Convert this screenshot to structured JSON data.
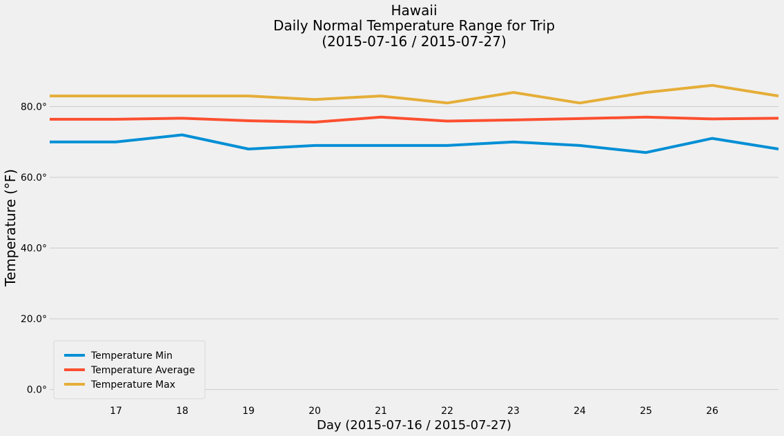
{
  "chart_data": {
    "type": "line",
    "title_lines": [
      "Hawaii",
      "Daily Normal Temperature Range for Trip",
      "(2015-07-16 / 2015-07-27)"
    ],
    "xlabel": "Day (2015-07-16 / 2015-07-27)",
    "ylabel": "Temperature (°F)",
    "x": [
      16,
      17,
      18,
      19,
      20,
      21,
      22,
      23,
      24,
      25,
      26,
      27
    ],
    "x_ticks": [
      17,
      18,
      19,
      20,
      21,
      22,
      23,
      24,
      25,
      26
    ],
    "xlim": [
      16,
      27
    ],
    "y_ticks": [
      0,
      20,
      40,
      60,
      80
    ],
    "y_tick_labels": [
      "0.0°",
      "20.0°",
      "40.0°",
      "60.0°",
      "80.0°"
    ],
    "ylim": [
      -3,
      95.5
    ],
    "grid": true,
    "legend_position": "lower-left",
    "series": [
      {
        "name": "Temperature Min",
        "color": "#008fd5",
        "values": [
          70.0,
          70.0,
          72.0,
          68.0,
          69.0,
          69.0,
          69.0,
          70.0,
          69.0,
          67.0,
          71.0,
          68.0
        ]
      },
      {
        "name": "Temperature Average",
        "color": "#fc4f30",
        "values": [
          76.4,
          76.4,
          76.7,
          76.0,
          75.6,
          77.0,
          75.9,
          76.2,
          76.6,
          77.0,
          76.5,
          76.7
        ]
      },
      {
        "name": "Temperature Max",
        "color": "#e5ae38",
        "values": [
          83.0,
          83.0,
          83.0,
          83.0,
          82.0,
          83.0,
          81.0,
          84.0,
          81.0,
          84.0,
          86.0,
          83.0
        ]
      }
    ]
  }
}
